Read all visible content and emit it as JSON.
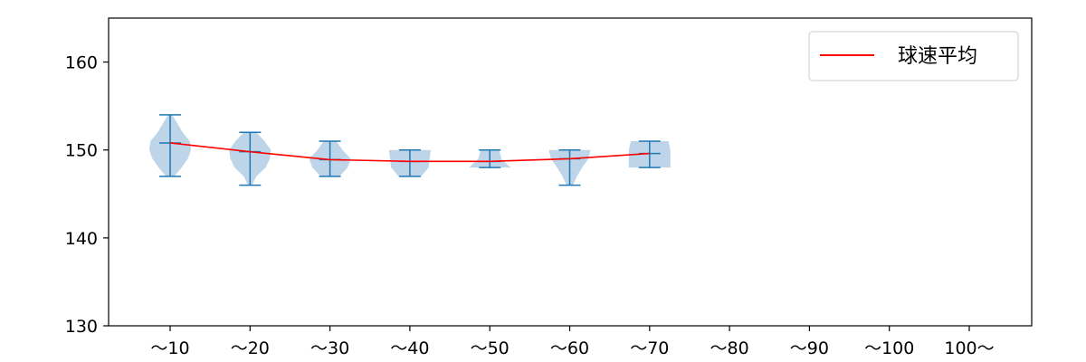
{
  "chart_data": {
    "type": "violin",
    "categories": [
      "～10",
      "～20",
      "～30",
      "～40",
      "～50",
      "～60",
      "～70",
      "～80",
      "～90",
      "～100",
      "100～"
    ],
    "ylim": [
      130,
      165
    ],
    "yticks": [
      130,
      140,
      150,
      160
    ],
    "grid": false,
    "legend": {
      "placement": "top-right",
      "entries": [
        "球速平均"
      ]
    },
    "series": [
      {
        "name": "球速平均",
        "kind": "line",
        "color": "#ff0000",
        "values": [
          150.8,
          149.8,
          148.9,
          148.7,
          148.7,
          149.0,
          149.6,
          null,
          null,
          null,
          null
        ]
      }
    ],
    "violins": [
      {
        "category": "～10",
        "min": 147,
        "max": 154,
        "mean": 150.8,
        "density": [
          [
            147,
            0.2
          ],
          [
            148,
            0.55
          ],
          [
            149,
            0.85
          ],
          [
            150,
            1.0
          ],
          [
            151,
            0.95
          ],
          [
            152,
            0.6
          ],
          [
            153,
            0.35
          ],
          [
            154,
            0.1
          ]
        ]
      },
      {
        "category": "～20",
        "min": 146,
        "max": 152,
        "mean": 149.8,
        "density": [
          [
            146,
            0.1
          ],
          [
            147,
            0.3
          ],
          [
            148,
            0.75
          ],
          [
            149,
            0.95
          ],
          [
            150,
            1.0
          ],
          [
            151,
            0.7
          ],
          [
            152,
            0.3
          ]
        ]
      },
      {
        "category": "～30",
        "min": 147,
        "max": 151,
        "mean": 148.9,
        "density": [
          [
            147,
            0.45
          ],
          [
            148,
            0.85
          ],
          [
            149,
            1.0
          ],
          [
            150,
            0.6
          ],
          [
            151,
            0.3
          ]
        ]
      },
      {
        "category": "～40",
        "min": 147,
        "max": 150,
        "mean": 148.7,
        "density": [
          [
            147,
            0.55
          ],
          [
            148,
            0.9
          ],
          [
            149,
            0.95
          ],
          [
            150,
            1.0
          ]
        ]
      },
      {
        "category": "～50",
        "min": 148,
        "max": 150,
        "mean": 148.7,
        "density": [
          [
            148,
            1.0
          ],
          [
            149,
            0.55
          ],
          [
            150,
            0.45
          ]
        ]
      },
      {
        "category": "～60",
        "min": 146,
        "max": 150,
        "mean": 149.0,
        "density": [
          [
            146,
            0.15
          ],
          [
            147,
            0.35
          ],
          [
            148,
            0.6
          ],
          [
            149,
            0.9
          ],
          [
            150,
            1.0
          ]
        ]
      },
      {
        "category": "～70",
        "min": 148,
        "max": 151,
        "mean": 149.6,
        "density": [
          [
            148,
            1.0
          ],
          [
            149,
            1.0
          ],
          [
            150,
            1.0
          ],
          [
            151,
            0.9
          ]
        ]
      }
    ],
    "colors": {
      "violin_fill": "#b9d2e8",
      "violin_line": "#1f77b4",
      "mean_line": "#ff0000",
      "axis": "#000000"
    }
  }
}
